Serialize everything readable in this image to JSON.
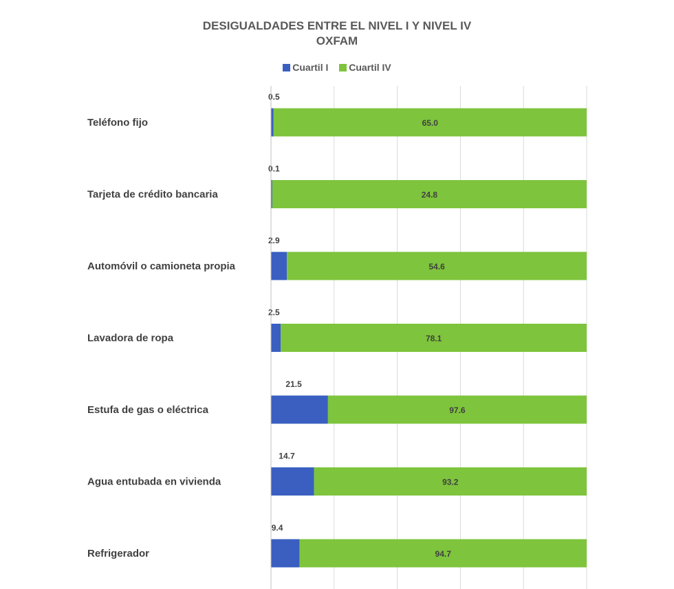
{
  "chart_data": {
    "type": "bar",
    "orientation": "horizontal",
    "stacking": "percent",
    "title": "DESIGUALDADES ENTRE EL NIVEL I Y NIVEL IV",
    "subtitle": "OXFAM",
    "categories": [
      "Teléfono fijo",
      "Tarjeta de crédito bancaria",
      "Automóvil o camioneta propia",
      "Lavadora de ropa",
      "Estufa de gas o eléctrica",
      "Agua entubada en vivienda",
      "Refrigerador"
    ],
    "series": [
      {
        "name": "Cuartil I",
        "color": "#3a5fc1",
        "values": [
          0.5,
          0.1,
          2.9,
          2.5,
          21.5,
          14.7,
          9.4
        ]
      },
      {
        "name": "Cuartil IV",
        "color": "#7ec43c",
        "values": [
          65.0,
          24.8,
          54.6,
          78.1,
          97.6,
          93.2,
          94.7
        ]
      }
    ],
    "xlim": [
      0,
      100
    ],
    "grid": true,
    "legend_position": "top"
  }
}
